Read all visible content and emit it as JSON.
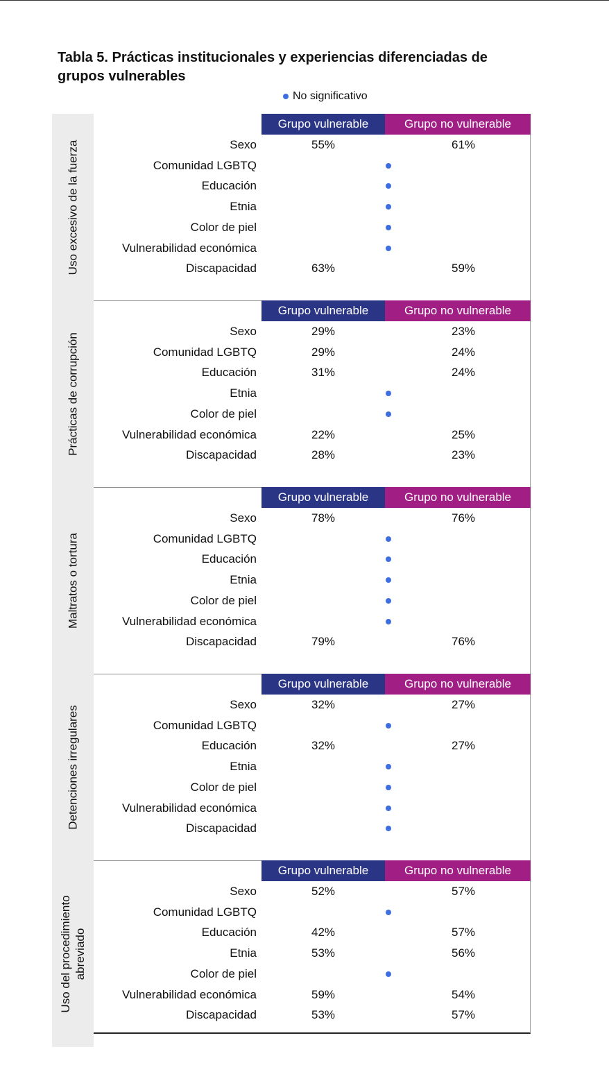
{
  "title": "Tabla 5. Prácticas institucionales y experiencias diferenciadas de grupos vulnerables",
  "legend": {
    "label": "No significativo",
    "icon": "blue-dot-icon",
    "dot_color": "#3f6ee0"
  },
  "colors": {
    "vulnerable_header": "#2a3585",
    "non_vulnerable_header": "#a11e85",
    "side_panel": "#ececec"
  },
  "columns": {
    "vulnerable": "Grupo vulnerable",
    "non_vulnerable": "Grupo no vulnerable"
  },
  "sections": [
    {
      "label": "Uso excesivo de la fuerza",
      "rows": [
        {
          "label": "Sexo",
          "vulnerable": "55%",
          "non_vulnerable": "61%"
        },
        {
          "label": "Comunidad LGBTQ",
          "not_significant": true
        },
        {
          "label": "Educación",
          "not_significant": true
        },
        {
          "label": "Etnia",
          "not_significant": true
        },
        {
          "label": "Color de piel",
          "not_significant": true
        },
        {
          "label": "Vulnerabilidad económica",
          "not_significant": true
        },
        {
          "label": "Discapacidad",
          "vulnerable": "63%",
          "non_vulnerable": "59%"
        }
      ]
    },
    {
      "label": "Prácticas de corrupción",
      "rows": [
        {
          "label": "Sexo",
          "vulnerable": "29%",
          "non_vulnerable": "23%"
        },
        {
          "label": "Comunidad LGBTQ",
          "vulnerable": "29%",
          "non_vulnerable": "24%"
        },
        {
          "label": "Educación",
          "vulnerable": "31%",
          "non_vulnerable": "24%"
        },
        {
          "label": "Etnia",
          "not_significant": true
        },
        {
          "label": "Color de piel",
          "not_significant": true
        },
        {
          "label": "Vulnerabilidad económica",
          "vulnerable": "22%",
          "non_vulnerable": "25%"
        },
        {
          "label": "Discapacidad",
          "vulnerable": "28%",
          "non_vulnerable": "23%"
        }
      ]
    },
    {
      "label": "Maltratos o tortura",
      "rows": [
        {
          "label": "Sexo",
          "vulnerable": "78%",
          "non_vulnerable": "76%"
        },
        {
          "label": "Comunidad LGBTQ",
          "not_significant": true
        },
        {
          "label": "Educación",
          "not_significant": true
        },
        {
          "label": "Etnia",
          "not_significant": true
        },
        {
          "label": "Color de piel",
          "not_significant": true
        },
        {
          "label": "Vulnerabilidad económica",
          "not_significant": true
        },
        {
          "label": "Discapacidad",
          "vulnerable": "79%",
          "non_vulnerable": "76%"
        }
      ]
    },
    {
      "label": "Detenciones irregulares",
      "rows": [
        {
          "label": "Sexo",
          "vulnerable": "32%",
          "non_vulnerable": "27%"
        },
        {
          "label": "Comunidad LGBTQ",
          "not_significant": true
        },
        {
          "label": "Educación",
          "vulnerable": "32%",
          "non_vulnerable": "27%"
        },
        {
          "label": "Etnia",
          "not_significant": true
        },
        {
          "label": "Color de piel",
          "not_significant": true
        },
        {
          "label": "Vulnerabilidad económica",
          "not_significant": true
        },
        {
          "label": "Discapacidad",
          "not_significant": true
        }
      ]
    },
    {
      "label": "Uso del procedimiento\nabreviado",
      "rows": [
        {
          "label": "Sexo",
          "vulnerable": "52%",
          "non_vulnerable": "57%"
        },
        {
          "label": "Comunidad LGBTQ",
          "not_significant": true
        },
        {
          "label": "Educación",
          "vulnerable": "42%",
          "non_vulnerable": "57%"
        },
        {
          "label": "Etnia",
          "vulnerable": "53%",
          "non_vulnerable": "56%"
        },
        {
          "label": "Color de piel",
          "not_significant": true
        },
        {
          "label": "Vulnerabilidad económica",
          "vulnerable": "59%",
          "non_vulnerable": "54%"
        },
        {
          "label": "Discapacidad",
          "vulnerable": "53%",
          "non_vulnerable": "57%"
        }
      ]
    }
  ]
}
